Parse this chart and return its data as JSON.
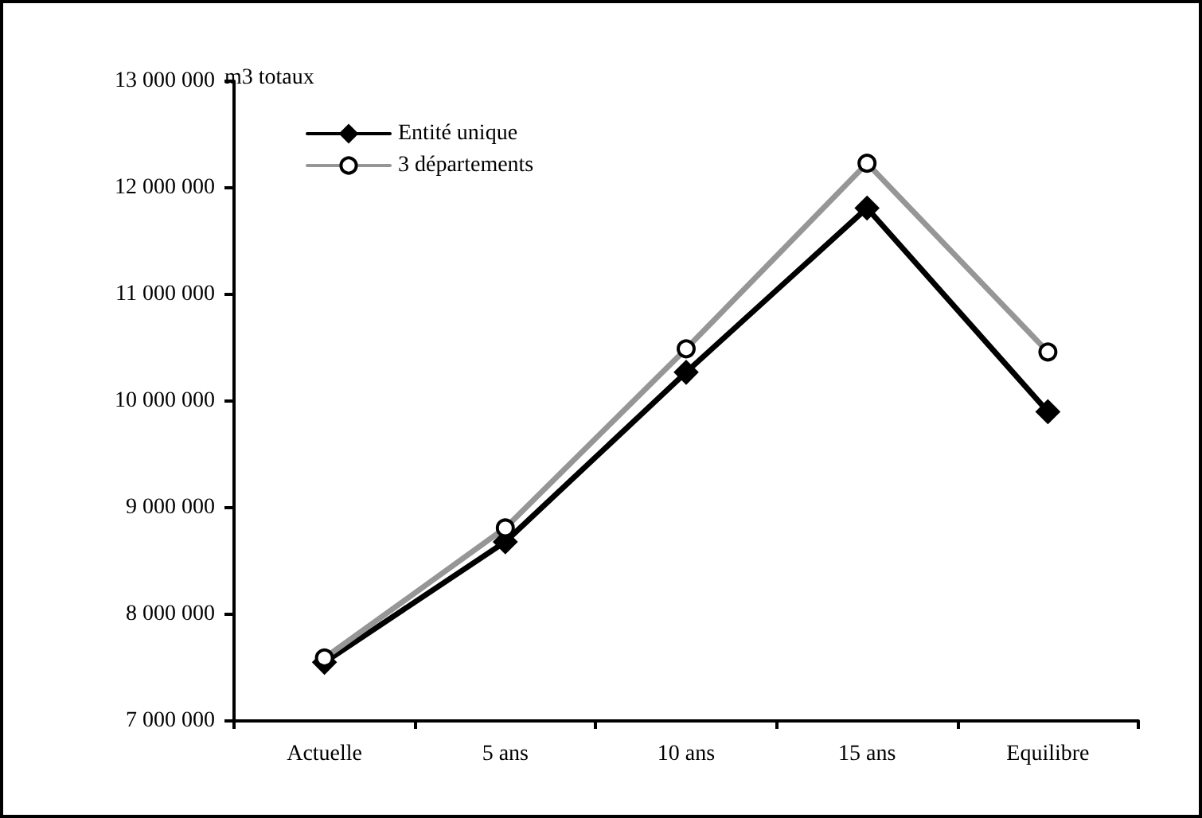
{
  "chart_data": {
    "type": "line",
    "ylabel": "m3 totaux",
    "categories": [
      "Actuelle",
      "5 ans",
      "10 ans",
      "15 ans",
      "Equilibre"
    ],
    "series": [
      {
        "name": "Entité unique",
        "color": "#000000",
        "marker": "diamond",
        "values": [
          7550000,
          8680000,
          10270000,
          11810000,
          9900000
        ]
      },
      {
        "name": "3 départements",
        "color": "#969696",
        "marker": "circle",
        "values": [
          7590000,
          8810000,
          10490000,
          12230000,
          10460000
        ]
      }
    ],
    "ylim": [
      7000000,
      13000000
    ],
    "yticks": [
      {
        "value": 7000000,
        "label": "7 000 000"
      },
      {
        "value": 8000000,
        "label": "8 000 000"
      },
      {
        "value": 9000000,
        "label": "9 000 000"
      },
      {
        "value": 10000000,
        "label": "10 000 000"
      },
      {
        "value": 11000000,
        "label": "11 000 000"
      },
      {
        "value": 12000000,
        "label": "12 000 000"
      },
      {
        "value": 13000000,
        "label": "13 000 000"
      }
    ],
    "grid": false,
    "legend": "top left",
    "line_style": "solid"
  }
}
